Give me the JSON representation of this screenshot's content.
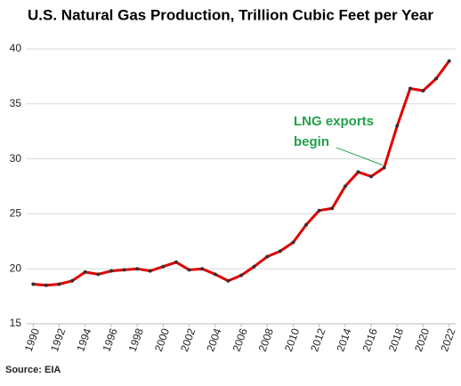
{
  "chart_data": {
    "type": "line",
    "title": "U.S. Natural Gas Production, Trillion Cubic Feet per Year",
    "x": [
      1990,
      1991,
      1992,
      1993,
      1994,
      1995,
      1996,
      1997,
      1998,
      1999,
      2000,
      2001,
      2002,
      2003,
      2004,
      2005,
      2006,
      2007,
      2008,
      2009,
      2010,
      2011,
      2012,
      2013,
      2014,
      2015,
      2016,
      2017,
      2018,
      2019,
      2020,
      2021,
      2022
    ],
    "series": [
      {
        "name": "U.S. Natural Gas Production",
        "color": "#e00000",
        "values": [
          18.6,
          18.5,
          18.6,
          18.9,
          19.7,
          19.5,
          19.8,
          19.9,
          20.0,
          19.8,
          20.2,
          20.6,
          19.9,
          20.0,
          19.5,
          18.9,
          19.4,
          20.2,
          21.1,
          21.6,
          22.4,
          24.0,
          25.3,
          25.5,
          27.5,
          28.8,
          28.4,
          29.2,
          33.0,
          36.4,
          36.2,
          37.3,
          38.9
        ]
      }
    ],
    "xlim": [
      1989.5,
      2022.5
    ],
    "xticks": [
      1990,
      1992,
      1994,
      1996,
      1998,
      2000,
      2002,
      2004,
      2006,
      2008,
      2010,
      2012,
      2014,
      2016,
      2018,
      2020,
      2022
    ],
    "ylim": [
      15,
      40
    ],
    "yticks": [
      15,
      20,
      25,
      30,
      35,
      40
    ],
    "grid": true,
    "annotation": {
      "text": [
        "LNG exports",
        "begin"
      ],
      "x": 2017
    },
    "source": "Source: EIA"
  }
}
